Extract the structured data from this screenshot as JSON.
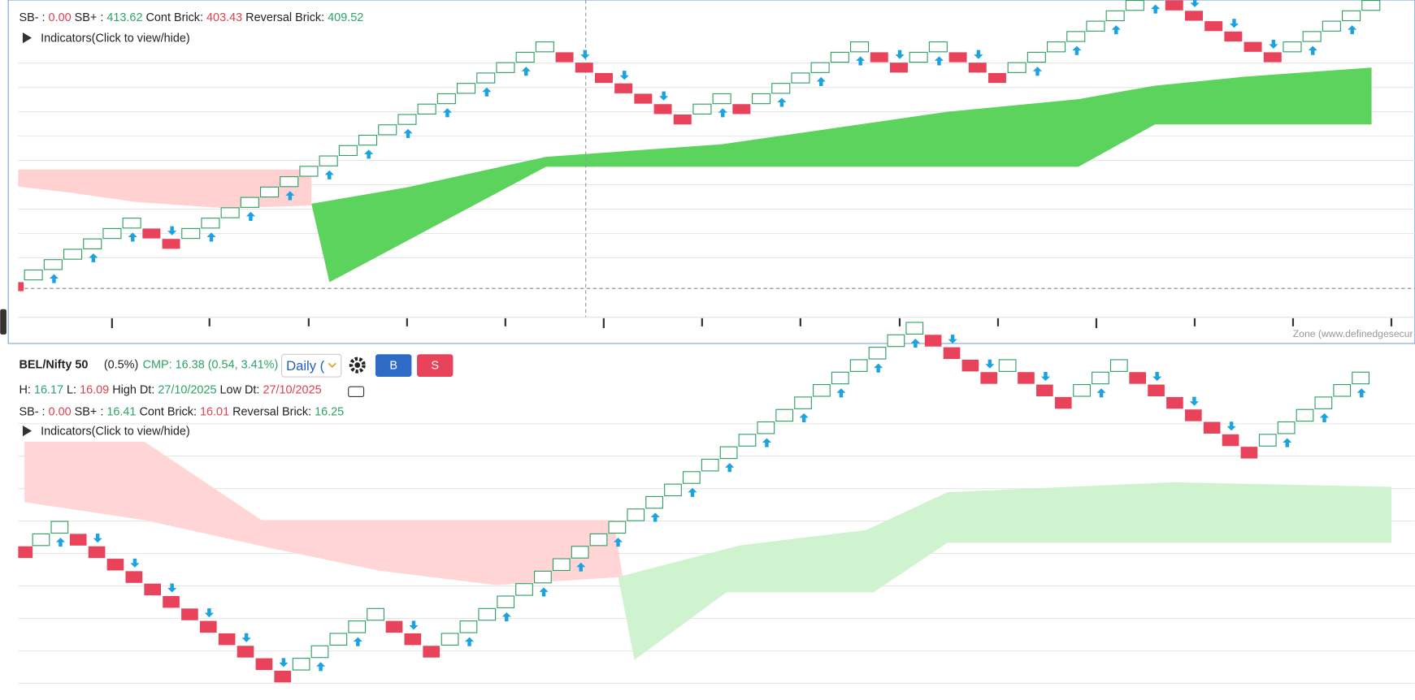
{
  "top_panel": {
    "stats": {
      "sb_minus_label": "SB- :",
      "sb_minus": "0.00",
      "sb_plus_label": "SB+ :",
      "sb_plus": "413.62",
      "cont_label": "Cont Brick:",
      "cont": "403.43",
      "rev_label": "Reversal Brick:",
      "rev": "409.52"
    },
    "indicators": "Indicators(Click to view/hide)",
    "watermark": "Zone (www.definedgesecur"
  },
  "bottom_panel": {
    "symbol": "BEL/Nifty 50",
    "box_size": "(0.5%)",
    "cmp": "CMP: 16.38 (0.54, 3.41%)",
    "timeframe": "Daily (",
    "buy": "B",
    "sell": "S",
    "hl": {
      "h_label": "H:",
      "h": "16.17",
      "l_label": "L:",
      "l": "16.09",
      "hd_label": "High Dt:",
      "hd": "27/10/2025",
      "ld_label": "Low Dt:",
      "ld": "27/10/2025"
    },
    "stats": {
      "sb_minus_label": "SB- :",
      "sb_minus": "0.00",
      "sb_plus_label": "SB+ :",
      "sb_plus": "16.41",
      "cont_label": "Cont Brick:",
      "cont": "16.01",
      "rev_label": "Reversal Brick:",
      "rev": "16.25"
    },
    "indicators": "Indicators(Click to view/hide)"
  }
}
